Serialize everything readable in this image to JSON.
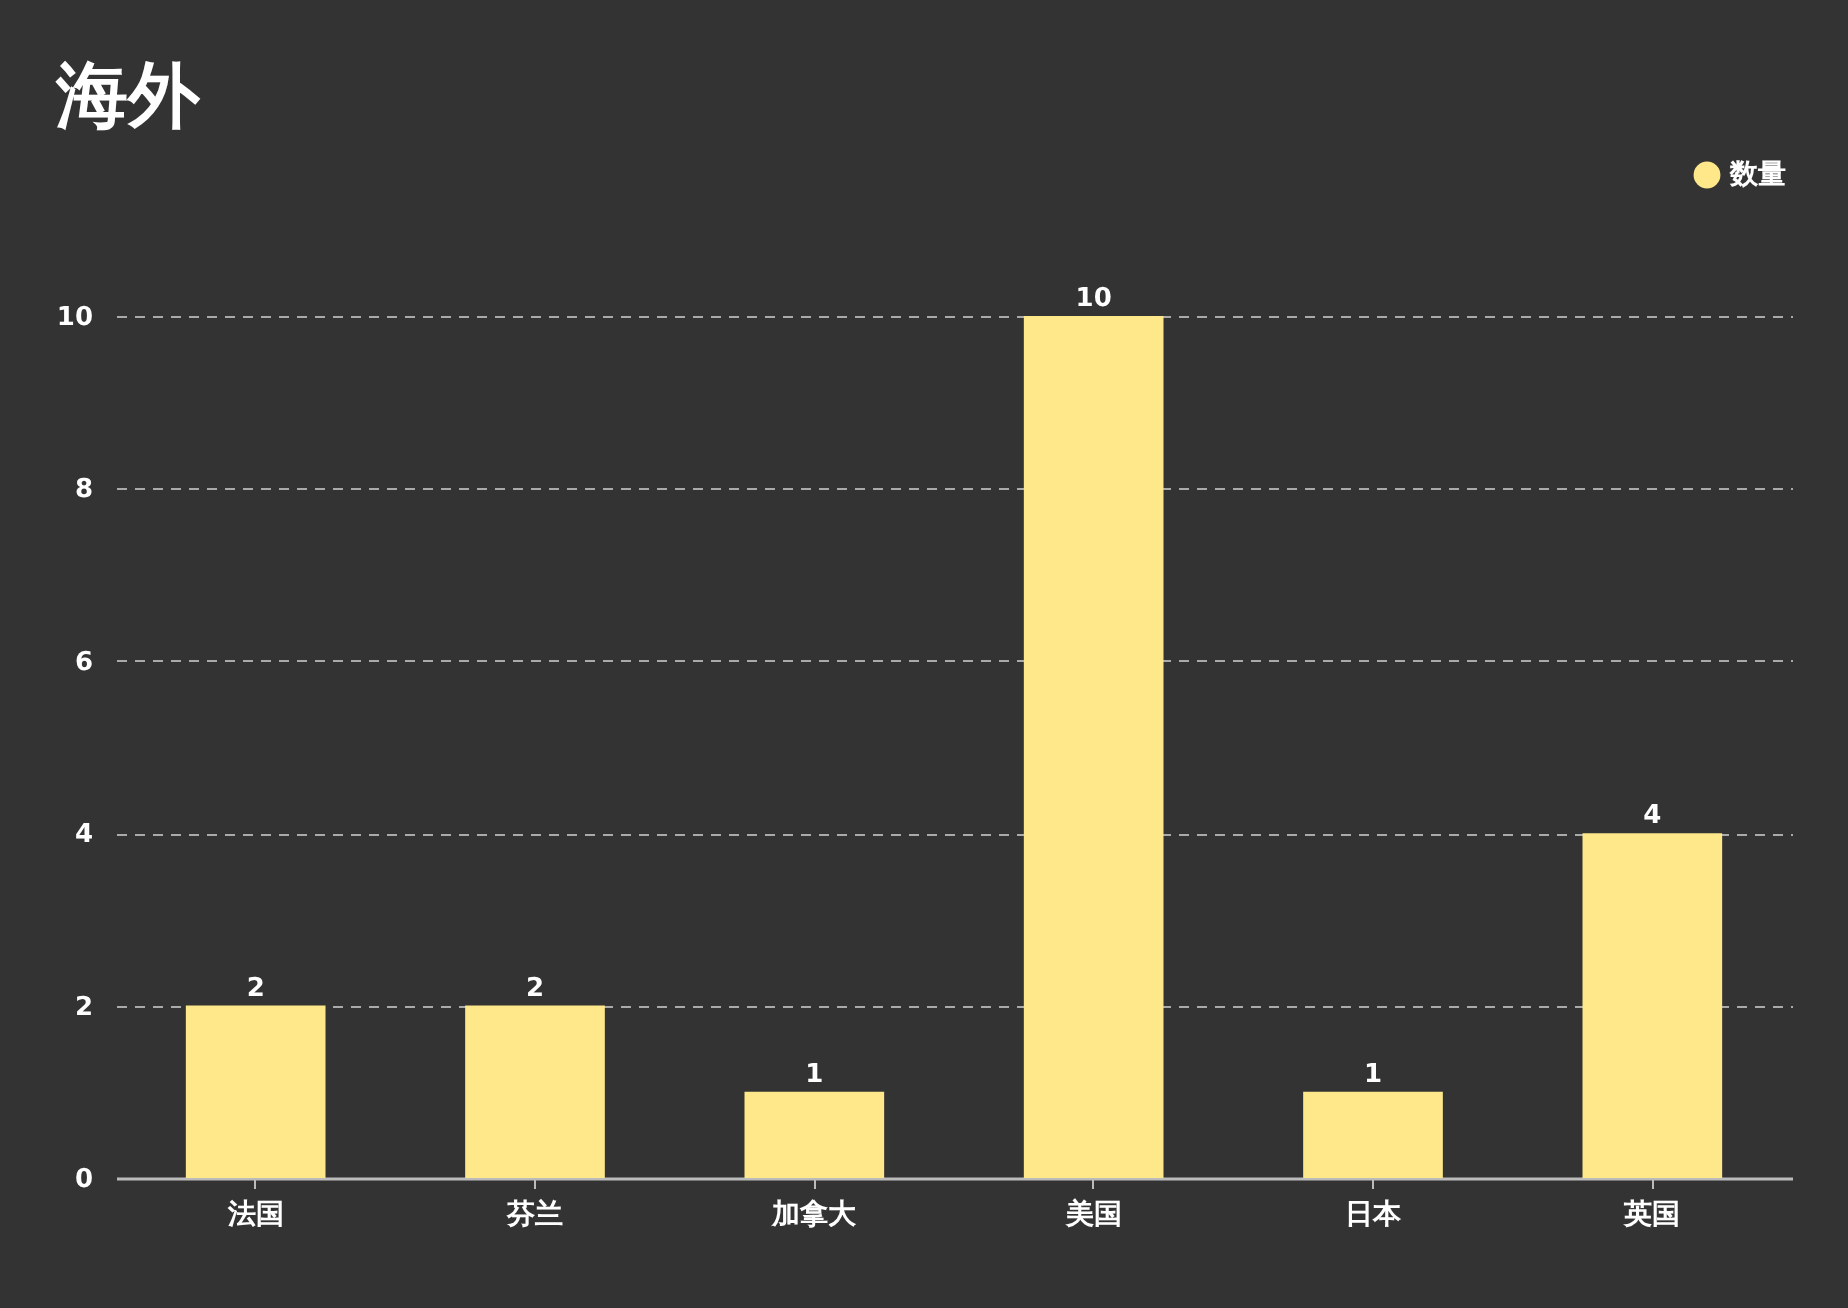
{
  "chart_data": {
    "type": "bar",
    "title": "海外",
    "categories": [
      "法国",
      "芬兰",
      "加拿大",
      "美国",
      "日本",
      "英国"
    ],
    "series": [
      {
        "name": "数量",
        "color": "#ffe88a",
        "values": [
          2,
          2,
          1,
          10,
          1,
          4
        ]
      }
    ],
    "ylim": [
      0,
      10
    ],
    "yticks": [
      0,
      2,
      4,
      6,
      8,
      10
    ],
    "grid": "y",
    "legend": "top right",
    "data_labels": true
  }
}
